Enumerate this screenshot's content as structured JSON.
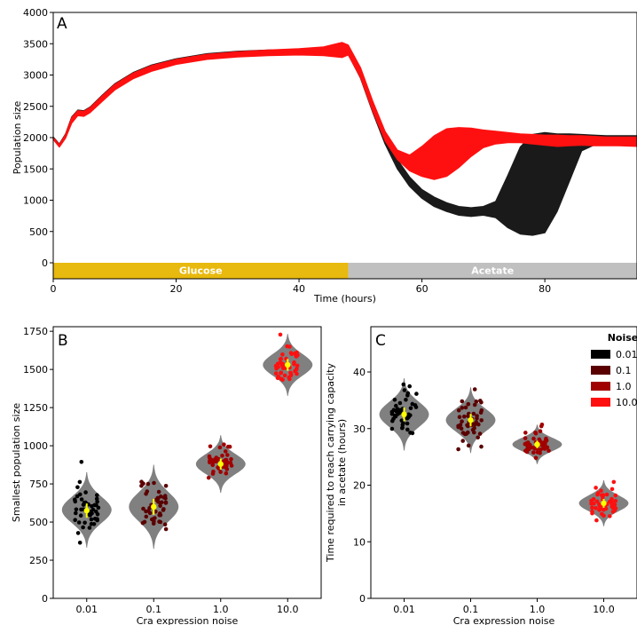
{
  "chart_data": [
    {
      "panel": "A",
      "type": "area",
      "xlabel": "Time (hours)",
      "ylabel": "Population size",
      "xlim": [
        0,
        95
      ],
      "ylim": [
        -250,
        4000
      ],
      "xticks": [
        0,
        20,
        40,
        60,
        80
      ],
      "yticks": [
        0,
        500,
        1000,
        1500,
        2000,
        2500,
        3000,
        3500,
        4000
      ],
      "series": [
        {
          "color": "#1a1a1a",
          "x": [
            0,
            1,
            2,
            3,
            4,
            5,
            6,
            8,
            10,
            13,
            16,
            20,
            25,
            30,
            35,
            40,
            44,
            47,
            48,
            50,
            52,
            54,
            56,
            58,
            60,
            62,
            64,
            66,
            68,
            70,
            72,
            74,
            76,
            78,
            80,
            82,
            84,
            86,
            88,
            90,
            92,
            95
          ],
          "lower": [
            1980,
            1860,
            2000,
            2250,
            2370,
            2360,
            2420,
            2600,
            2780,
            2960,
            3080,
            3190,
            3270,
            3310,
            3330,
            3340,
            3330,
            3300,
            3330,
            2950,
            2400,
            1900,
            1500,
            1220,
            1030,
            900,
            820,
            760,
            740,
            760,
            720,
            560,
            460,
            440,
            480,
            820,
            1300,
            1790,
            1880,
            1900,
            1900,
            1900
          ],
          "upper": [
            2010,
            1900,
            2060,
            2330,
            2440,
            2430,
            2490,
            2680,
            2860,
            3040,
            3160,
            3260,
            3340,
            3380,
            3400,
            3410,
            3420,
            3510,
            3470,
            3100,
            2550,
            2050,
            1650,
            1370,
            1170,
            1050,
            960,
            900,
            880,
            900,
            980,
            1400,
            1850,
            2050,
            2080,
            2060,
            2060,
            2050,
            2040,
            2030,
            2030,
            2030
          ]
        },
        {
          "color": "#ff1010",
          "x": [
            0,
            1,
            2,
            3,
            4,
            5,
            6,
            8,
            10,
            13,
            16,
            20,
            25,
            30,
            35,
            40,
            44,
            47,
            48,
            50,
            52,
            54,
            56,
            58,
            60,
            62,
            64,
            66,
            68,
            70,
            72,
            74,
            76,
            78,
            80,
            82,
            84,
            86,
            88,
            90,
            92,
            95
          ],
          "lower": [
            1970,
            1850,
            1990,
            2230,
            2350,
            2340,
            2400,
            2580,
            2760,
            2940,
            3060,
            3170,
            3250,
            3290,
            3310,
            3320,
            3310,
            3280,
            3320,
            2960,
            2420,
            1950,
            1650,
            1470,
            1380,
            1330,
            1380,
            1520,
            1700,
            1840,
            1900,
            1920,
            1920,
            1900,
            1880,
            1860,
            1870,
            1880,
            1870,
            1870,
            1870,
            1860
          ],
          "upper": [
            2000,
            1890,
            2050,
            2320,
            2430,
            2420,
            2480,
            2670,
            2850,
            3030,
            3150,
            3250,
            3330,
            3370,
            3400,
            3420,
            3450,
            3520,
            3480,
            3120,
            2580,
            2100,
            1800,
            1720,
            1860,
            2030,
            2140,
            2160,
            2150,
            2120,
            2100,
            2080,
            2060,
            2050,
            2040,
            2040,
            2030,
            2030,
            2020,
            2010,
            2010,
            2010
          ]
        }
      ],
      "phases": [
        {
          "label": "Glucose",
          "start": 0,
          "end": 48,
          "color": "#e8b90e"
        },
        {
          "label": "Acetate",
          "start": 48,
          "end": 95,
          "color": "#c0c0c0"
        }
      ]
    },
    {
      "panel": "B",
      "type": "scatter",
      "xlabel": "Cra expression noise",
      "ylabel": "Smallest population size",
      "categories": [
        "0.01",
        "0.1",
        "1.0",
        "10.0"
      ],
      "ylim": [
        0,
        1780
      ],
      "yticks": [
        0,
        250,
        500,
        750,
        1000,
        1250,
        1500,
        1750
      ],
      "groups": [
        {
          "color": "#000000",
          "center": 580,
          "mean": 575,
          "sd": 85,
          "ci": [
            555,
            600
          ],
          "spread": 90
        },
        {
          "color": "#5a0000",
          "center": 600,
          "mean": 600,
          "sd": 95,
          "ci": [
            575,
            625
          ],
          "spread": 100
        },
        {
          "color": "#a00000",
          "center": 880,
          "mean": 880,
          "sd": 65,
          "ci": [
            860,
            900
          ],
          "spread": 80
        },
        {
          "color": "#ff1010",
          "center": 1530,
          "mean": 1530,
          "sd": 70,
          "ci": [
            1510,
            1550
          ],
          "spread": 100
        }
      ]
    },
    {
      "panel": "C",
      "type": "scatter",
      "xlabel": "Cra expression noise",
      "ylabel": "Time required to reach carrying capacity in acetate (hours)",
      "categories": [
        "0.01",
        "0.1",
        "1.0",
        "10.0"
      ],
      "ylim": [
        0,
        48
      ],
      "yticks": [
        0,
        10,
        20,
        30,
        40
      ],
      "legend_title": "Noise",
      "legend_position": "top-right",
      "groups": [
        {
          "name": "0.01",
          "color": "#000000",
          "center": 32.5,
          "mean": 32.5,
          "sd": 2.2,
          "ci": [
            31.8,
            33.2
          ],
          "spread": 3
        },
        {
          "name": "0.1",
          "color": "#5a0000",
          "center": 31.5,
          "mean": 31.5,
          "sd": 2.0,
          "ci": [
            30.8,
            32.2
          ],
          "spread": 2.8
        },
        {
          "name": "1.0",
          "color": "#a00000",
          "center": 27.2,
          "mean": 27.2,
          "sd": 1.2,
          "ci": [
            26.8,
            27.6
          ],
          "spread": 2
        },
        {
          "name": "10.0",
          "color": "#ff1010",
          "center": 16.8,
          "mean": 16.8,
          "sd": 1.4,
          "ci": [
            16.4,
            17.2
          ],
          "spread": 2
        }
      ]
    }
  ]
}
